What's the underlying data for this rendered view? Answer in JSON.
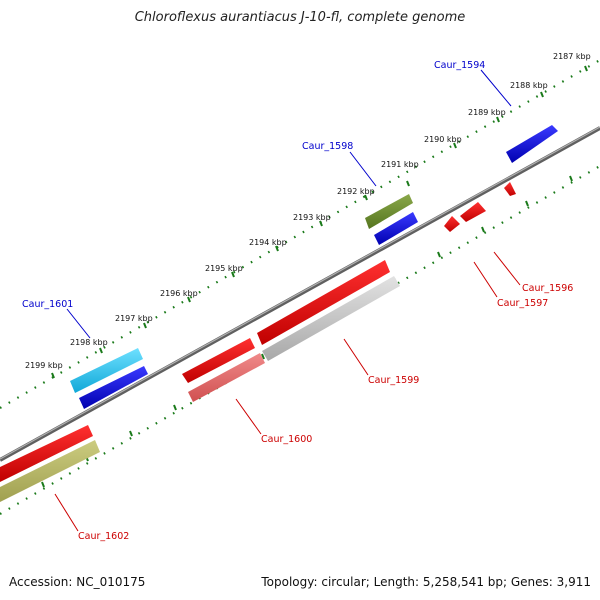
{
  "title": "Chloroflexus aurantiacus J-10-fl, complete genome",
  "footer": {
    "accession": "Accession: NC_010175",
    "topology": "Topology: circular; Length: 5,258,541 bp; Genes: 3,911"
  },
  "colors": {
    "label_forward": "#0000cc",
    "label_reverse": "#cc0000",
    "tick": "#1a7a1a",
    "backbone": "#808080"
  },
  "scale_labels": [
    "2187 kbp",
    "2188 kbp",
    "2189 kbp",
    "2190 kbp",
    "2191 kbp",
    "2192 kbp",
    "2193 kbp",
    "2194 kbp",
    "2195 kbp",
    "2196 kbp",
    "2197 kbp",
    "2198 kbp",
    "2199 kbp"
  ],
  "genes": {
    "forward": [
      {
        "id": "Caur_1594",
        "color": "#0000dd"
      },
      {
        "id": "Caur_1598",
        "color": "#6b8e23"
      },
      {
        "id": "Caur_1601",
        "color": "#1ec8ee"
      }
    ],
    "reverse": [
      {
        "id": "Caur_1596",
        "color": "#ee0000"
      },
      {
        "id": "Caur_1597",
        "color": "#ee0000"
      },
      {
        "id": "Caur_1599",
        "color": "#ee0000"
      },
      {
        "id": "Caur_1600",
        "color": "#ee0000"
      },
      {
        "id": "Caur_1602",
        "color": "#ee0000"
      }
    ]
  }
}
